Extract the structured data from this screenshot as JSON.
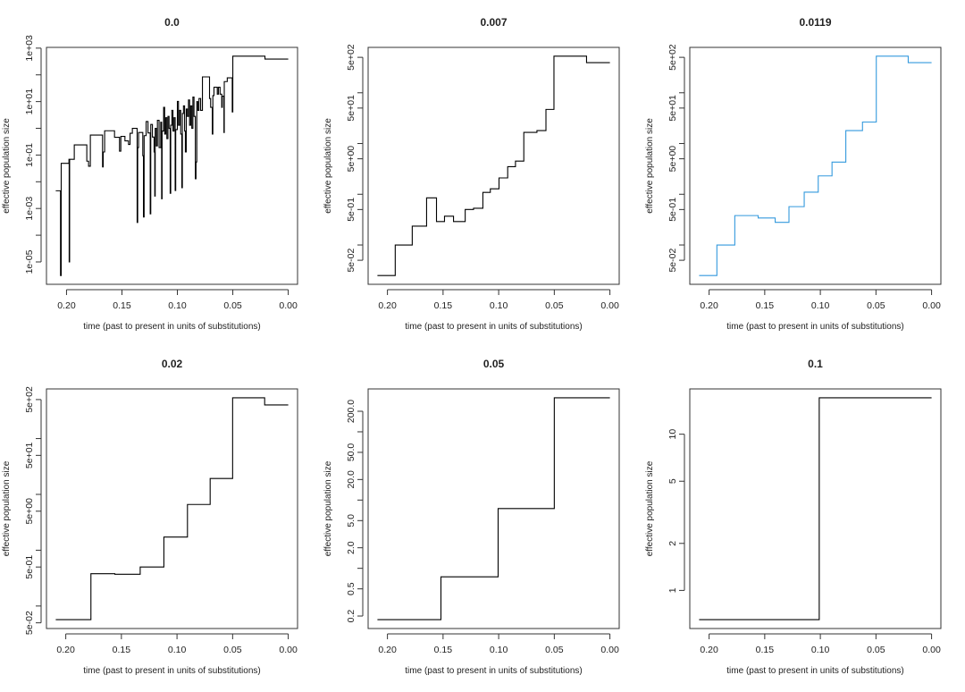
{
  "chart_data": [
    {
      "type": "line",
      "step": true,
      "title": "0.0",
      "xlabel": "time (past to present in units of substitutions)",
      "ylabel": "effective population size",
      "x_reversed": true,
      "y_scale": "log",
      "color": "#000000",
      "x_ticks": [
        0.2,
        0.15,
        0.1,
        0.05,
        0.0
      ],
      "x_tick_labels": [
        "0.20",
        "0.15",
        "0.10",
        "0.05",
        "0.00"
      ],
      "y_ticks": [
        1e-05,
        0.0001,
        0.001,
        0.01,
        0.1,
        1,
        10,
        100,
        1000
      ],
      "y_tick_labels": [
        "1e-05",
        "",
        "1e-03",
        "",
        "1e-01",
        "",
        "1e+01",
        "",
        "1e+03"
      ],
      "steps": [
        [
          0.2097,
          0.0046
        ],
        [
          0.2054,
          3.1e-06
        ],
        [
          0.2048,
          0.049
        ],
        [
          0.1978,
          0.069
        ],
        [
          0.1976,
          1e-05
        ],
        [
          0.1972,
          0.069
        ],
        [
          0.193,
          0.24
        ],
        [
          0.1817,
          0.059
        ],
        [
          0.1801,
          0.038
        ],
        [
          0.1785,
          0.56
        ],
        [
          0.1675,
          0.036
        ],
        [
          0.1669,
          0.13
        ],
        [
          0.1656,
          0.81
        ],
        [
          0.1567,
          0.46
        ],
        [
          0.1522,
          0.14
        ],
        [
          0.151,
          0.5
        ],
        [
          0.1473,
          0.34
        ],
        [
          0.1441,
          0.25
        ],
        [
          0.1427,
          0.65
        ],
        [
          0.1406,
          1.0
        ],
        [
          0.1363,
          0.0003
        ],
        [
          0.1358,
          0.19
        ],
        [
          0.135,
          0.7
        ],
        [
          0.1312,
          0.094
        ],
        [
          0.1306,
          0.00048
        ],
        [
          0.13,
          0.53
        ],
        [
          0.1282,
          1.8
        ],
        [
          0.1265,
          0.67
        ],
        [
          0.1245,
          0.00063
        ],
        [
          0.124,
          1.4
        ],
        [
          0.1225,
          0.47
        ],
        [
          0.121,
          0.13
        ],
        [
          0.1204,
          0.0029
        ],
        [
          0.12,
          1.0
        ],
        [
          0.119,
          0.22
        ],
        [
          0.118,
          2.0
        ],
        [
          0.1165,
          0.19
        ],
        [
          0.115,
          1.7
        ],
        [
          0.1142,
          0.0023
        ],
        [
          0.1138,
          0.79
        ],
        [
          0.1124,
          6.1
        ],
        [
          0.1115,
          0.61
        ],
        [
          0.1105,
          2.5
        ],
        [
          0.1095,
          0.41
        ],
        [
          0.1085,
          2.8
        ],
        [
          0.1075,
          1.0
        ],
        [
          0.1065,
          0.0037
        ],
        [
          0.106,
          1.3
        ],
        [
          0.105,
          4.7
        ],
        [
          0.104,
          0.79
        ],
        [
          0.103,
          2.5
        ],
        [
          0.102,
          0.0047
        ],
        [
          0.1015,
          0.9
        ],
        [
          0.1,
          10.2
        ],
        [
          0.099,
          1.3
        ],
        [
          0.098,
          4.7
        ],
        [
          0.097,
          0.61
        ],
        [
          0.096,
          0.006
        ],
        [
          0.0955,
          3.6
        ],
        [
          0.0945,
          6.9
        ],
        [
          0.0935,
          0.79
        ],
        [
          0.0928,
          0.13
        ],
        [
          0.092,
          5.3
        ],
        [
          0.091,
          2.8
        ],
        [
          0.09,
          11.5
        ],
        [
          0.089,
          1.3
        ],
        [
          0.088,
          6.9
        ],
        [
          0.087,
          1.0
        ],
        [
          0.086,
          14.8
        ],
        [
          0.085,
          2.8
        ],
        [
          0.0838,
          0.013
        ],
        [
          0.0832,
          0.055
        ],
        [
          0.0825,
          10
        ],
        [
          0.0815,
          4.7
        ],
        [
          0.0805,
          13
        ],
        [
          0.079,
          4.7
        ],
        [
          0.0774,
          84
        ],
        [
          0.071,
          13
        ],
        [
          0.07,
          6.1
        ],
        [
          0.0685,
          0.61
        ],
        [
          0.068,
          16.8
        ],
        [
          0.067,
          34.5
        ],
        [
          0.064,
          19
        ],
        [
          0.063,
          34.5
        ],
        [
          0.0615,
          19
        ],
        [
          0.06,
          6.1
        ],
        [
          0.0595,
          16
        ],
        [
          0.058,
          0.7
        ],
        [
          0.0577,
          56
        ],
        [
          0.055,
          77.6
        ],
        [
          0.0505,
          4.1
        ],
        [
          0.05,
          501
        ],
        [
          0.021,
          390
        ]
      ]
    },
    {
      "type": "line",
      "step": true,
      "title": "0.007",
      "xlabel": "time (past to present in units of substitutions)",
      "ylabel": "effective population size",
      "x_reversed": true,
      "y_scale": "log",
      "color": "#000000",
      "x_ticks": [
        0.2,
        0.15,
        0.1,
        0.05,
        0.0
      ],
      "x_tick_labels": [
        "0.20",
        "0.15",
        "0.10",
        "0.05",
        "0.00"
      ],
      "y_ticks": [
        0.05,
        0.1,
        0.5,
        1,
        5,
        10,
        50,
        100,
        500
      ],
      "y_tick_labels": [
        "5e-02",
        "",
        "5e-01",
        "",
        "5e+00",
        "",
        "5e+01",
        "",
        "5e+02"
      ],
      "steps": [
        [
          0.209,
          0.025
        ],
        [
          0.193,
          0.1
        ],
        [
          0.1777,
          0.235
        ],
        [
          0.1648,
          0.85
        ],
        [
          0.1559,
          0.29
        ],
        [
          0.1487,
          0.37
        ],
        [
          0.1406,
          0.29
        ],
        [
          0.1301,
          0.5
        ],
        [
          0.1226,
          0.53
        ],
        [
          0.1142,
          1.09
        ],
        [
          0.1075,
          1.28
        ],
        [
          0.0997,
          2.1
        ],
        [
          0.0919,
          3.5
        ],
        [
          0.0849,
          4.5
        ],
        [
          0.0774,
          16.6
        ],
        [
          0.0656,
          18
        ],
        [
          0.0575,
          47
        ],
        [
          0.0503,
          527
        ],
        [
          0.021,
          393
        ]
      ]
    },
    {
      "type": "line",
      "step": true,
      "title": "0.0119",
      "xlabel": "time (past to present in units of substitutions)",
      "ylabel": "effective population size",
      "x_reversed": true,
      "y_scale": "log",
      "color": "#3399dd",
      "x_ticks": [
        0.2,
        0.15,
        0.1,
        0.05,
        0.0
      ],
      "x_tick_labels": [
        "0.20",
        "0.15",
        "0.10",
        "0.05",
        "0.00"
      ],
      "y_ticks": [
        0.05,
        0.1,
        0.5,
        1,
        5,
        10,
        50,
        100,
        500
      ],
      "y_tick_labels": [
        "5e-02",
        "",
        "5e-01",
        "",
        "5e+00",
        "",
        "5e+01",
        "",
        "5e+02"
      ],
      "steps": [
        [
          0.209,
          0.025
        ],
        [
          0.193,
          0.1
        ],
        [
          0.1769,
          0.38
        ],
        [
          0.1559,
          0.34
        ],
        [
          0.1406,
          0.28
        ],
        [
          0.1282,
          0.57
        ],
        [
          0.1145,
          1.1
        ],
        [
          0.1019,
          2.3
        ],
        [
          0.0895,
          4.3
        ],
        [
          0.0771,
          18
        ],
        [
          0.0621,
          26.5
        ],
        [
          0.0497,
          527
        ],
        [
          0.021,
          393
        ]
      ]
    },
    {
      "type": "line",
      "step": true,
      "title": "0.02",
      "xlabel": "time (past to present in units of substitutions)",
      "ylabel": "effective population size",
      "x_reversed": true,
      "y_scale": "log",
      "color": "#000000",
      "x_ticks": [
        0.2,
        0.15,
        0.1,
        0.05,
        0.0
      ],
      "x_tick_labels": [
        "0.20",
        "0.15",
        "0.10",
        "0.05",
        "0.00"
      ],
      "y_ticks": [
        0.05,
        0.1,
        0.5,
        1,
        5,
        10,
        50,
        100,
        500
      ],
      "y_tick_labels": [
        "5e-02",
        "",
        "5e-01",
        "",
        "5e+00",
        "",
        "5e+01",
        "",
        "5e+02"
      ],
      "steps": [
        [
          0.209,
          0.057
        ],
        [
          0.1774,
          0.38
        ],
        [
          0.1559,
          0.37
        ],
        [
          0.1331,
          0.5
        ],
        [
          0.1118,
          1.72
        ],
        [
          0.0906,
          6.6
        ],
        [
          0.0702,
          19.3
        ],
        [
          0.05,
          538
        ],
        [
          0.0212,
          401
        ]
      ]
    },
    {
      "type": "line",
      "step": true,
      "title": "0.05",
      "xlabel": "time (past to present in units of substitutions)",
      "ylabel": "effective population size",
      "x_reversed": true,
      "y_scale": "log",
      "color": "#000000",
      "x_ticks": [
        0.2,
        0.15,
        0.1,
        0.05,
        0.0
      ],
      "x_tick_labels": [
        "0.20",
        "0.15",
        "0.10",
        "0.05",
        "0.00"
      ],
      "y_ticks": [
        0.2,
        0.5,
        1,
        2,
        5,
        10,
        20,
        50,
        100,
        200
      ],
      "y_tick_labels": [
        "0.2",
        "0.5",
        "",
        "2.0",
        "5.0",
        "",
        "20.0",
        "50.0",
        "",
        "200.0"
      ],
      "steps": [
        [
          0.209,
          0.177
        ],
        [
          0.1519,
          0.75
        ],
        [
          0.1005,
          7.5
        ],
        [
          0.05,
          315
        ]
      ]
    },
    {
      "type": "line",
      "step": true,
      "title": "0.1",
      "xlabel": "time (past to present in units of substitutions)",
      "ylabel": "effective population size",
      "x_reversed": true,
      "y_scale": "log",
      "color": "#000000",
      "x_ticks": [
        0.2,
        0.15,
        0.1,
        0.05,
        0.0
      ],
      "x_tick_labels": [
        "0.20",
        "0.15",
        "0.10",
        "0.05",
        "0.00"
      ],
      "y_ticks": [
        1,
        2,
        5,
        10
      ],
      "y_tick_labels": [
        "1",
        "2",
        "5",
        "10"
      ],
      "steps": [
        [
          0.209,
          0.65
        ],
        [
          0.101,
          17.1
        ]
      ]
    }
  ]
}
